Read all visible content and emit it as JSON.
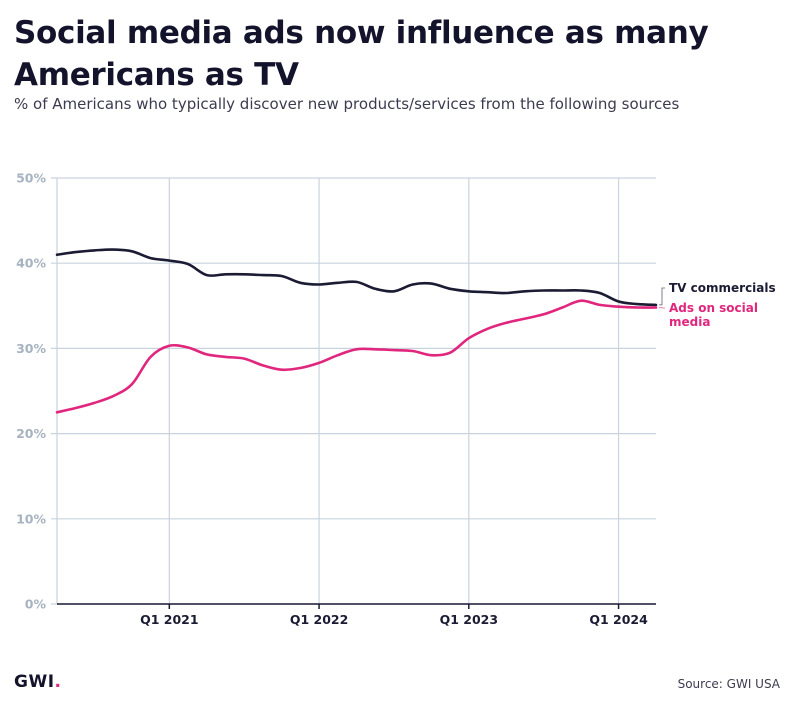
{
  "header": {
    "title": "Social media ads now influence as many Americans as TV",
    "subtitle": "% of Americans who typically discover new products/services from the following sources"
  },
  "footer": {
    "logo_text": "GWI",
    "logo_dot": ".",
    "source": "Source: GWI USA"
  },
  "colors": {
    "tv": "#1b1b33",
    "social": "#e0267d",
    "grid": "#c9d3dd",
    "axis_label": "#a7b3c0",
    "accent": "#e0267d"
  },
  "chart_data": {
    "type": "line",
    "x": [
      0,
      0.5,
      1,
      1.5,
      2,
      2.5,
      3,
      3.5,
      4,
      4.5,
      5,
      5.5,
      6,
      6.5,
      7,
      7.5,
      8,
      8.5,
      9,
      9.5,
      10,
      10.5,
      11,
      11.5,
      12,
      12.5,
      13,
      13.5,
      14,
      14.5,
      15,
      15.5,
      16
    ],
    "x_range": [
      0,
      16
    ],
    "x_ticks": [
      {
        "x": 3,
        "label": "Q1 2021"
      },
      {
        "x": 7,
        "label": "Q1 2022"
      },
      {
        "x": 11,
        "label": "Q1 2023"
      },
      {
        "x": 15,
        "label": "Q1 2024"
      }
    ],
    "ylim": [
      0,
      50
    ],
    "y_ticks": [
      0,
      10,
      20,
      30,
      40,
      50
    ],
    "y_tick_labels": [
      "0%",
      "10%",
      "20%",
      "30%",
      "40%",
      "50%"
    ],
    "grid": true,
    "legend": "right end labels",
    "series": [
      {
        "name": "TV commercials",
        "values": [
          41.0,
          41.3,
          41.5,
          41.6,
          41.4,
          40.6,
          40.3,
          39.9,
          38.6,
          38.7,
          38.7,
          38.6,
          38.5,
          37.7,
          37.5,
          37.7,
          37.8,
          37.0,
          36.7,
          37.5,
          37.6,
          37.0,
          36.7,
          36.6,
          36.5,
          36.7,
          36.8,
          36.8,
          36.8,
          36.5,
          35.5,
          35.2,
          35.1
        ]
      },
      {
        "name": "Ads on social media",
        "values": [
          22.5,
          23.0,
          23.6,
          24.4,
          25.8,
          29.0,
          30.3,
          30.1,
          29.3,
          29.0,
          28.8,
          28.0,
          27.5,
          27.7,
          28.3,
          29.2,
          29.9,
          29.9,
          29.8,
          29.7,
          29.2,
          29.5,
          31.2,
          32.3,
          33.0,
          33.5,
          34.0,
          34.8,
          35.6,
          35.1,
          34.9,
          34.8,
          34.8
        ]
      }
    ],
    "end_labels": [
      {
        "series": 0,
        "lines": [
          "TV commercials"
        ]
      },
      {
        "series": 1,
        "lines": [
          "Ads on social",
          "media"
        ]
      }
    ]
  }
}
